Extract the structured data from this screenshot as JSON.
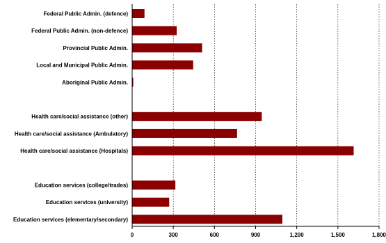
{
  "chart_data": {
    "type": "bar",
    "orientation": "horizontal",
    "title": "",
    "xlabel": "",
    "ylabel": "",
    "xlim": [
      0,
      1800
    ],
    "xticks": [
      0,
      300,
      600,
      900,
      1200,
      1500,
      1800
    ],
    "xtick_labels": [
      "0",
      "300",
      "600",
      "900",
      "1,200",
      "1,500",
      "1,800"
    ],
    "grid": "vertical dotted",
    "legend": "none",
    "bar_color": "#8B0000",
    "rows": [
      {
        "label": "Federal Public Admin. (defence)",
        "value": 90
      },
      {
        "label": "Federal Public Admin. (non-defence)",
        "value": 325
      },
      {
        "label": "Provincial Public Admin.",
        "value": 510
      },
      {
        "label": "Local and Municipal Public Admin.",
        "value": 445
      },
      {
        "label": "Aboriginal Public Admin.",
        "value": 8
      },
      {
        "label": "",
        "value": null
      },
      {
        "label": "Health care/social assistance (other)",
        "value": 945
      },
      {
        "label": "Health care/social assistance (Ambulatory)",
        "value": 765
      },
      {
        "label": "Health care/social assistance (Hospitals)",
        "value": 1615
      },
      {
        "label": "",
        "value": null
      },
      {
        "label": "Education services (college/trades)",
        "value": 315
      },
      {
        "label": "Education services (university)",
        "value": 270
      },
      {
        "label": "Education services (elementary/secondary)",
        "value": 1095
      }
    ]
  }
}
